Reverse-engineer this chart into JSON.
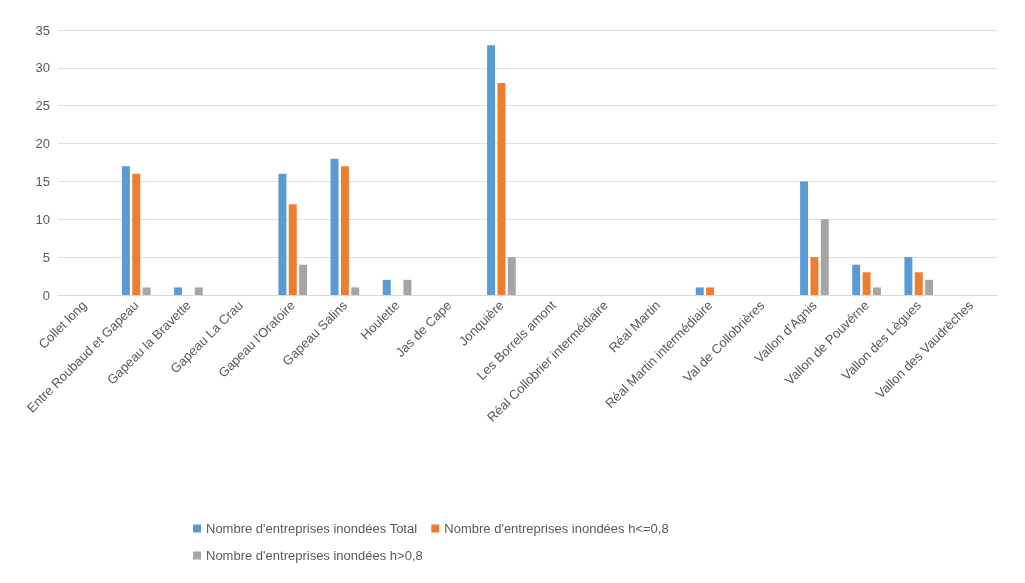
{
  "chart_data": {
    "type": "bar",
    "categories": [
      "Collet long",
      "Entre Roubaud et Gapeau",
      "Gapeau la Bravette",
      "Gapeau La Crau",
      "Gapeau l'Oratoire",
      "Gapeau Salins",
      "Houlette",
      "Jas de Cape",
      "Jonquière",
      "Les Borrels amont",
      "Réal Collobrier intermédiaire",
      "Réal Martin",
      "Réal Martin intermédiaire",
      "Val de Collobrières",
      "Vallon d’Agnis",
      "Vallon de Pouvérne",
      "Vallon des Lègues",
      "Vallon des Vaudrèches"
    ],
    "series": [
      {
        "name": "Nombre d'entreprises inondées Total",
        "color": "#5b9bd5",
        "values": [
          null,
          17,
          1,
          null,
          16,
          18,
          2,
          null,
          33,
          null,
          null,
          null,
          1,
          null,
          15,
          4,
          5,
          null
        ]
      },
      {
        "name": "Nombre d'entreprises inondées h<=0,8",
        "color": "#ed7d31",
        "values": [
          null,
          16,
          null,
          null,
          12,
          17,
          null,
          null,
          28,
          null,
          null,
          null,
          1,
          null,
          5,
          3,
          3,
          null
        ]
      },
      {
        "name": "Nombre d'entreprises inondées h>0,8",
        "color": "#a5a5a5",
        "values": [
          null,
          1,
          1,
          null,
          4,
          1,
          2,
          null,
          5,
          null,
          null,
          null,
          null,
          null,
          10,
          1,
          2,
          null
        ]
      }
    ],
    "ylim": [
      0,
      35
    ],
    "yticks": [
      0,
      5,
      10,
      15,
      20,
      25,
      30,
      35
    ],
    "grid": "y",
    "legend": "bottom"
  }
}
